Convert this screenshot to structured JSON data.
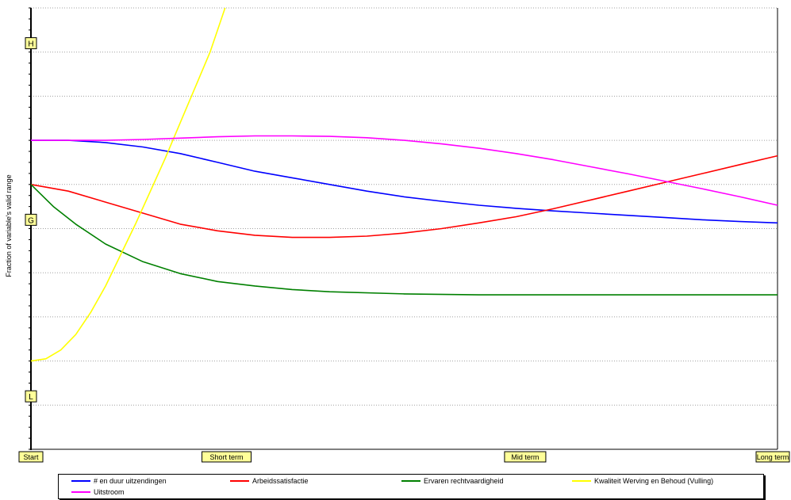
{
  "chart_data": {
    "type": "line",
    "ylabel": "Fraction of variable's valid range",
    "x_markers": [
      "Start",
      "Short term",
      "Mid term",
      "Long term"
    ],
    "y_markers": [
      {
        "label": "H",
        "value": 0.92
      },
      {
        "label": "G",
        "value": 0.52
      },
      {
        "label": "L",
        "value": 0.12
      }
    ],
    "ylim": [
      0,
      1
    ],
    "xlim": [
      0,
      1
    ],
    "grid": true,
    "legend_position": "bottom",
    "series": [
      {
        "name": "# en duur uitzendingen",
        "color": "#0000ff",
        "x": [
          0,
          0.05,
          0.1,
          0.15,
          0.2,
          0.25,
          0.3,
          0.35,
          0.4,
          0.45,
          0.5,
          0.55,
          0.6,
          0.65,
          0.7,
          0.75,
          0.8,
          0.85,
          0.9,
          0.95,
          1
        ],
        "y": [
          0.7,
          0.7,
          0.695,
          0.685,
          0.67,
          0.65,
          0.63,
          0.615,
          0.6,
          0.585,
          0.572,
          0.562,
          0.553,
          0.546,
          0.54,
          0.535,
          0.53,
          0.525,
          0.52,
          0.516,
          0.513
        ]
      },
      {
        "name": "Arbeidssatisfactie",
        "color": "#ff0000",
        "x": [
          0,
          0.05,
          0.1,
          0.15,
          0.2,
          0.25,
          0.3,
          0.35,
          0.4,
          0.45,
          0.5,
          0.55,
          0.6,
          0.65,
          0.7,
          0.75,
          0.8,
          0.85,
          0.9,
          0.95,
          1
        ],
        "y": [
          0.6,
          0.585,
          0.56,
          0.535,
          0.51,
          0.495,
          0.485,
          0.48,
          0.48,
          0.483,
          0.49,
          0.5,
          0.513,
          0.527,
          0.545,
          0.565,
          0.585,
          0.605,
          0.625,
          0.645,
          0.665
        ]
      },
      {
        "name": "Ervaren rechtvaardigheid",
        "color": "#008000",
        "x": [
          0,
          0.03,
          0.06,
          0.1,
          0.15,
          0.2,
          0.25,
          0.3,
          0.35,
          0.4,
          0.5,
          0.6,
          0.7,
          0.8,
          0.9,
          1
        ],
        "y": [
          0.6,
          0.55,
          0.51,
          0.465,
          0.425,
          0.398,
          0.38,
          0.37,
          0.362,
          0.357,
          0.352,
          0.35,
          0.35,
          0.35,
          0.35,
          0.35
        ]
      },
      {
        "name": "Kwaliteit Werving en Behoud (Vulling)",
        "color": "#ffff00",
        "x": [
          0,
          0.02,
          0.04,
          0.06,
          0.08,
          0.1,
          0.12,
          0.14,
          0.16,
          0.18,
          0.2,
          0.22,
          0.24,
          0.26
        ],
        "y": [
          0.2,
          0.205,
          0.225,
          0.26,
          0.31,
          0.37,
          0.44,
          0.51,
          0.585,
          0.66,
          0.74,
          0.82,
          0.9,
          1.0
        ]
      },
      {
        "name": "Uitstroom",
        "color": "#ff00ff",
        "x": [
          0,
          0.05,
          0.1,
          0.15,
          0.2,
          0.25,
          0.3,
          0.35,
          0.4,
          0.45,
          0.5,
          0.55,
          0.6,
          0.65,
          0.7,
          0.75,
          0.8,
          0.85,
          0.9,
          0.95,
          1
        ],
        "y": [
          0.7,
          0.7,
          0.7,
          0.702,
          0.705,
          0.708,
          0.71,
          0.71,
          0.709,
          0.706,
          0.7,
          0.692,
          0.682,
          0.67,
          0.656,
          0.64,
          0.624,
          0.607,
          0.59,
          0.572,
          0.553
        ]
      }
    ]
  }
}
